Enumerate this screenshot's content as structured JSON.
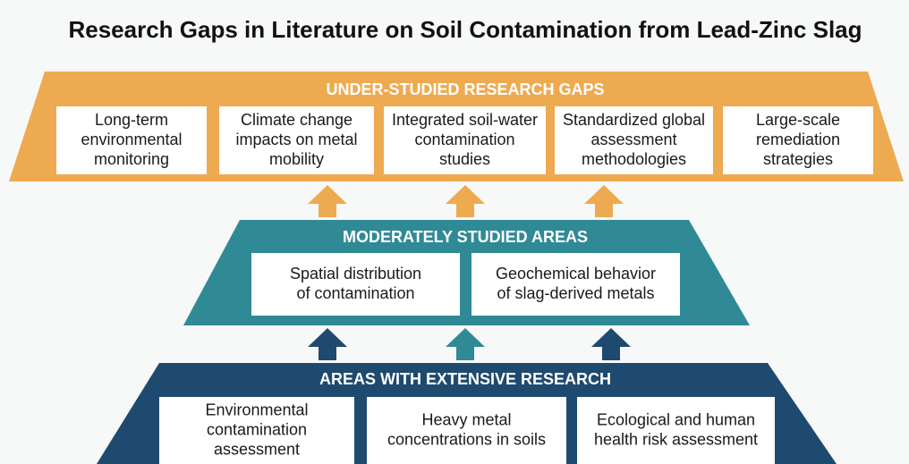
{
  "title": "Research Gaps in Literature on Soil Contamination from Lead-Zinc Slag",
  "tiers": [
    {
      "heading": "UNDER-STUDIED RESEARCH GAPS",
      "items": [
        [
          "Long-term",
          "environmental",
          "monitoring"
        ],
        [
          "Climate change",
          "impacts on metal",
          "mobility"
        ],
        [
          "Integrated soil-water",
          "contamination",
          "studies"
        ],
        [
          "Standardized global",
          "assessment",
          "methodologies"
        ],
        [
          "Large-scale",
          "remediation",
          "strategies"
        ]
      ]
    },
    {
      "heading": "MODERATELY STUDIED AREAS",
      "items": [
        [
          "Spatial distribution",
          "of contamination"
        ],
        [
          "Geochemical behavior",
          "of slag-derived metals"
        ]
      ]
    },
    {
      "heading": "AREAS WITH EXTENSIVE RESEARCH",
      "items": [
        [
          "Environmental",
          "contamination",
          "assessment"
        ],
        [
          "Heavy metal",
          "concentrations in soils"
        ],
        [
          "Ecological and human",
          "health risk assessment"
        ]
      ]
    }
  ]
}
